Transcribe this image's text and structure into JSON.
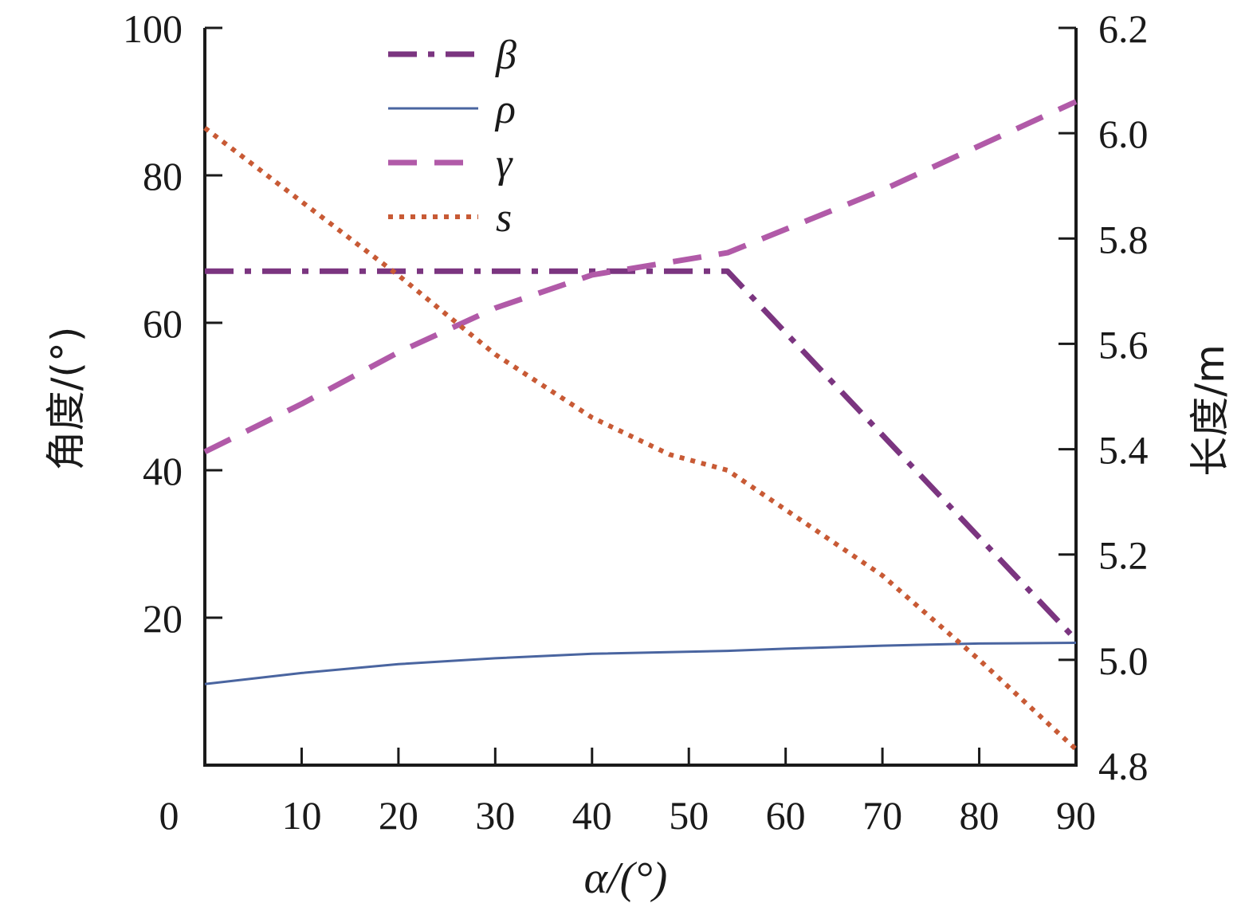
{
  "chart_data": {
    "type": "line",
    "title": "",
    "xlabel": "α/(°)",
    "ylabel_left": "角度/(°)",
    "ylabel_right": "长度/m",
    "xlim": [
      0,
      90
    ],
    "ylim_left": [
      0,
      100
    ],
    "ylim_right": [
      4.8,
      6.2
    ],
    "x_ticks": [
      0,
      10,
      20,
      30,
      40,
      50,
      60,
      70,
      80,
      90
    ],
    "y_left_ticks": [
      20,
      40,
      60,
      80,
      100
    ],
    "y_right_ticks": [
      "4.8",
      "5.0",
      "5.2",
      "5.4",
      "5.6",
      "5.8",
      "6.0",
      "6.2"
    ],
    "grid": false,
    "legend_position": "top-left",
    "series": [
      {
        "name": "β",
        "axis": "left",
        "color": "#7b3580",
        "style": "dashdot",
        "points": [
          [
            0,
            67
          ],
          [
            54,
            67
          ],
          [
            90,
            17
          ]
        ]
      },
      {
        "name": "ρ",
        "axis": "left",
        "color": "#4a65a0",
        "style": "solid",
        "points": [
          [
            0,
            11
          ],
          [
            10,
            12.5
          ],
          [
            20,
            13.7
          ],
          [
            30,
            14.5
          ],
          [
            40,
            15.1
          ],
          [
            54,
            15.5
          ],
          [
            60,
            15.8
          ],
          [
            70,
            16.2
          ],
          [
            80,
            16.5
          ],
          [
            90,
            16.6
          ]
        ]
      },
      {
        "name": "γ",
        "axis": "left",
        "color": "#b15aa8",
        "style": "dashed",
        "points": [
          [
            0,
            42.5
          ],
          [
            10,
            49
          ],
          [
            20,
            56
          ],
          [
            30,
            62
          ],
          [
            40,
            66.5
          ],
          [
            54,
            69.5
          ],
          [
            70,
            78
          ],
          [
            90,
            90
          ]
        ]
      },
      {
        "name": "s",
        "axis": "right",
        "color": "#c85a35",
        "style": "dotted",
        "points": [
          [
            0,
            6.01
          ],
          [
            10,
            5.87
          ],
          [
            20,
            5.73
          ],
          [
            30,
            5.58
          ],
          [
            40,
            5.46
          ],
          [
            48,
            5.39
          ],
          [
            54,
            5.36
          ],
          [
            70,
            5.16
          ],
          [
            80,
            5.0
          ],
          [
            90,
            4.83
          ]
        ]
      }
    ]
  }
}
